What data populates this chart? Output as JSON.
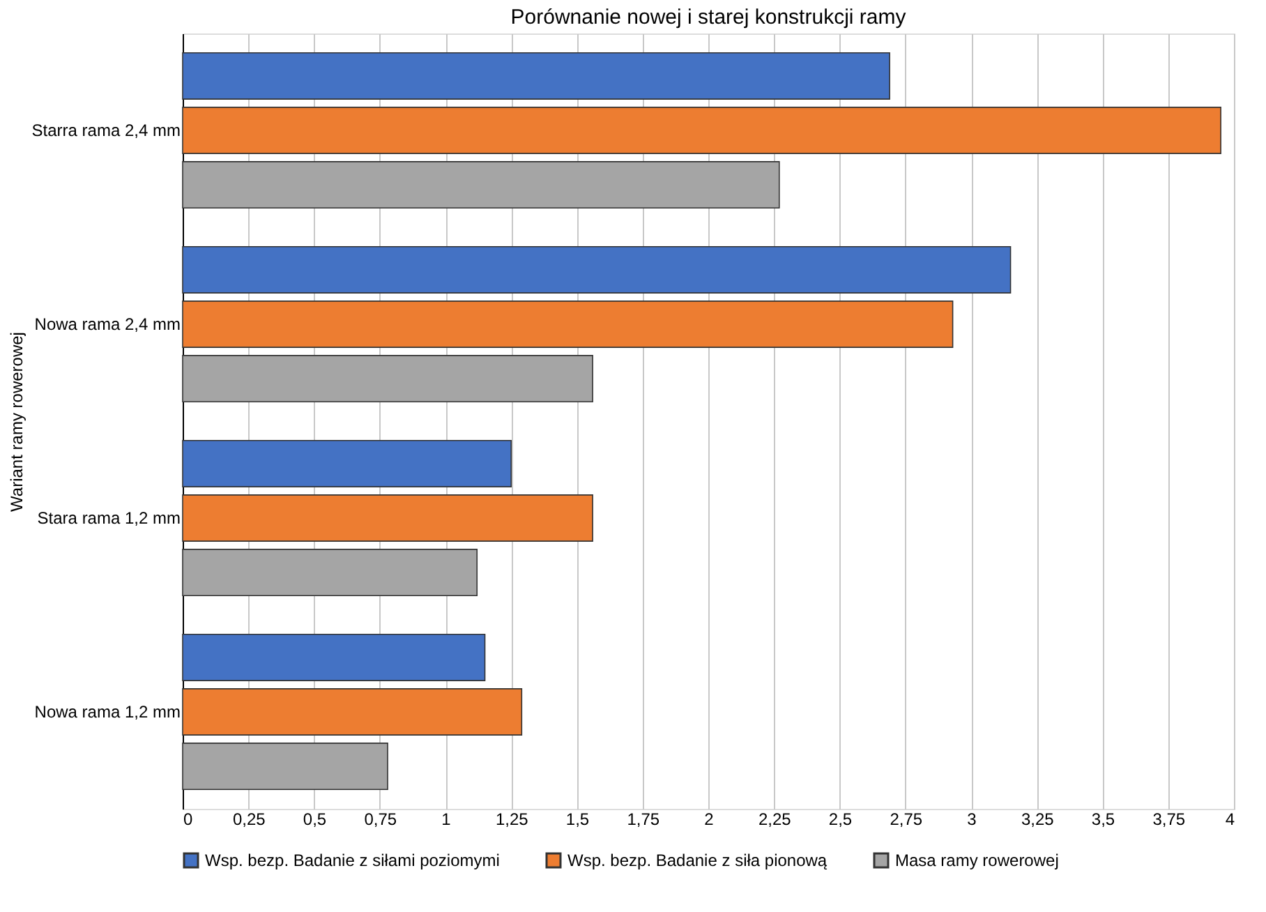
{
  "chart_data": {
    "type": "bar",
    "orientation": "horizontal",
    "title": "Porównanie nowej i starej konstrukcji ramy",
    "ylabel": "Wariant ramy rowerowej",
    "categories": [
      "Starra rama 2,4 mm",
      "Nowa rama 2,4 mm",
      "Stara rama 1,2 mm",
      "Nowa rama 1,2 mm"
    ],
    "series": [
      {
        "name": "Wsp. bezp. Badanie z siłami poziomymi",
        "color": "#4472c4",
        "values": [
          2.69,
          3.15,
          1.25,
          1.15
        ]
      },
      {
        "name": "Wsp. bezp. Badanie z siła pionową",
        "color": "#ed7d31",
        "values": [
          3.95,
          2.93,
          1.56,
          1.29
        ]
      },
      {
        "name": "Masa ramy rowerowej",
        "color": "#a5a5a5",
        "values": [
          2.27,
          1.56,
          1.12,
          0.78
        ]
      }
    ],
    "xlim": [
      0,
      4
    ],
    "xticks": [
      0,
      {
        "value": 0.25,
        "label": "0,25"
      },
      {
        "value": 0.5,
        "label": "0,5"
      },
      {
        "value": 0.75,
        "label": "0,75"
      },
      1,
      {
        "value": 1.25,
        "label": "1,25"
      },
      {
        "value": 1.5,
        "label": "1,5"
      },
      {
        "value": 1.75,
        "label": "1,75"
      },
      2,
      {
        "value": 2.25,
        "label": "2,25"
      },
      {
        "value": 2.5,
        "label": "2,5"
      },
      {
        "value": 2.75,
        "label": "2,75"
      },
      3,
      {
        "value": 3.25,
        "label": "3,25"
      },
      {
        "value": 3.5,
        "label": "3,5"
      },
      {
        "value": 3.75,
        "label": "3,75"
      },
      4
    ],
    "grid": "x",
    "legend": "bottom"
  }
}
